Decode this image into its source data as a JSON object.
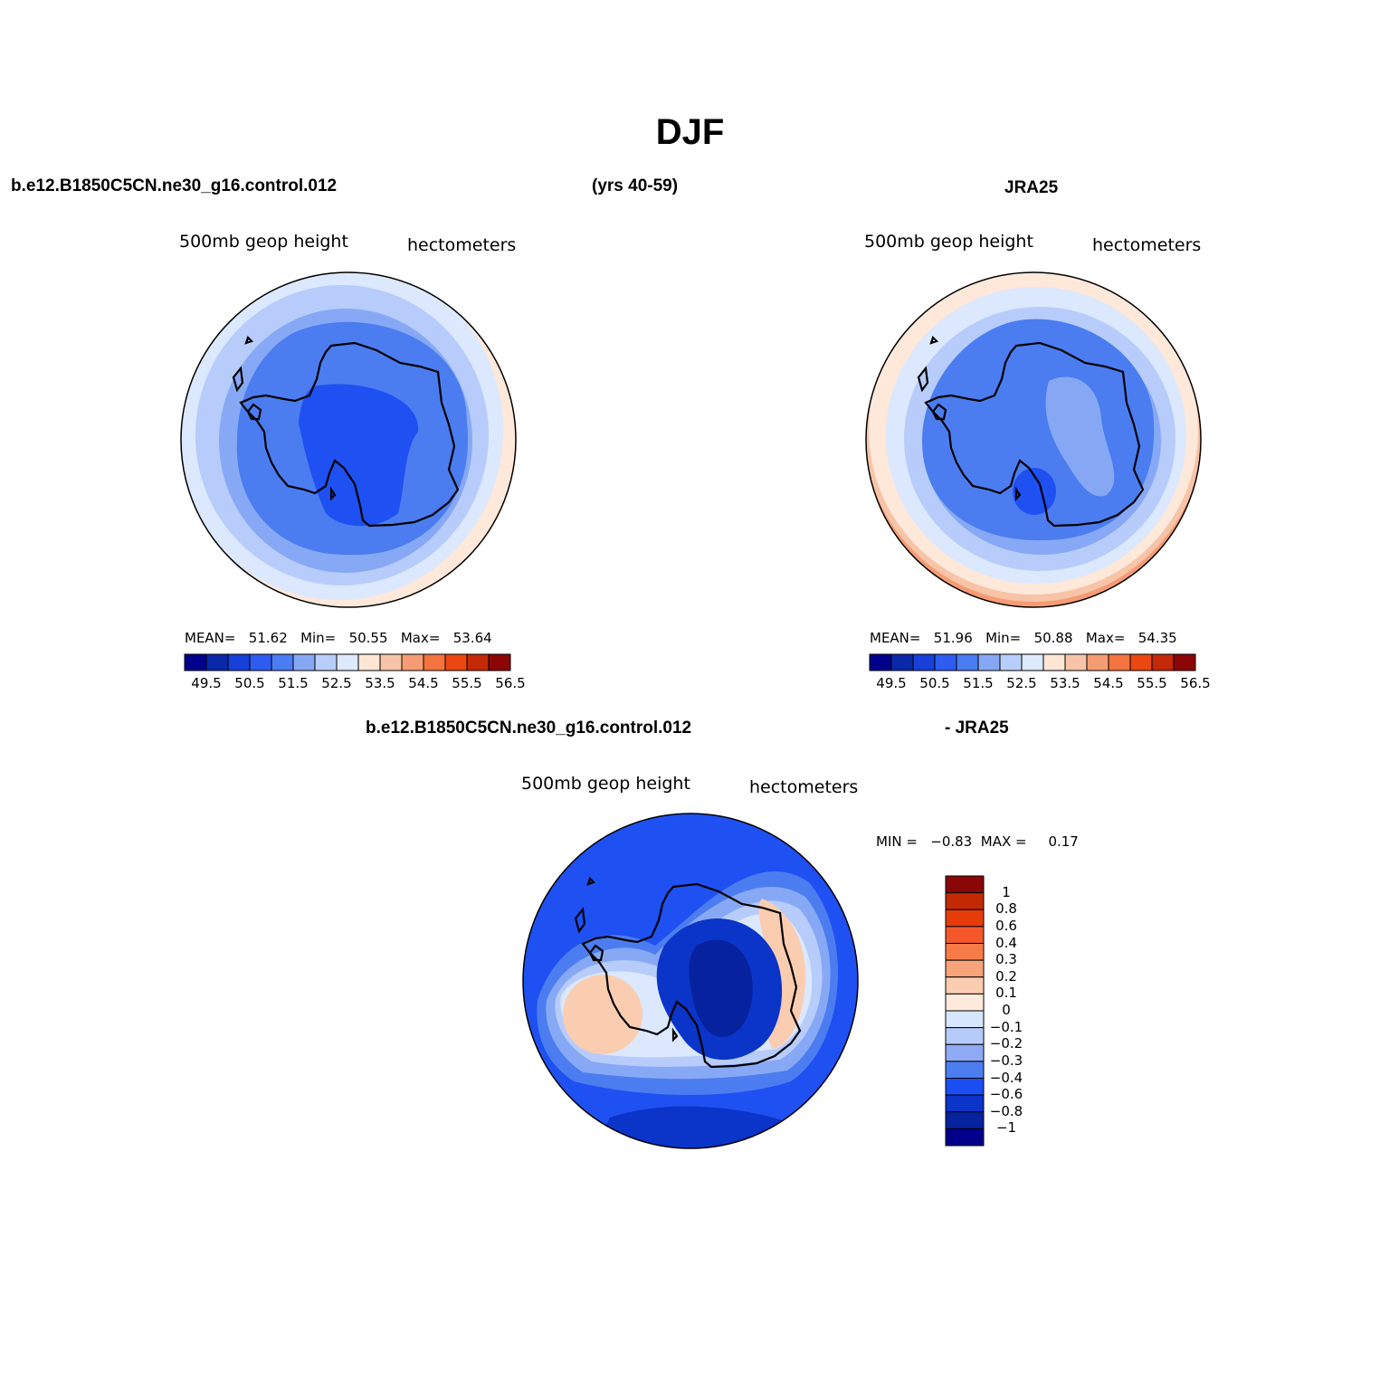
{
  "page_title": "DJF",
  "header": {
    "case_name": "b.e12.B1850C5CN.ne30_g16.control.012",
    "years": "(yrs 40-59)",
    "reference": "JRA25"
  },
  "panels": [
    {
      "variable": "500mb geop height",
      "units": "hectometers",
      "mean_label": "MEAN=",
      "mean": "51.62",
      "min_label": "Min=",
      "min": "50.55",
      "max_label": "Max=",
      "max": "53.64"
    },
    {
      "variable": "500mb geop height",
      "units": "hectometers",
      "mean_label": "MEAN=",
      "mean": "51.96",
      "min_label": "Min=",
      "min": "50.88",
      "max_label": "Max=",
      "max": "54.35"
    }
  ],
  "diff": {
    "header_left": "b.e12.B1850C5CN.ne30_g16.control.012",
    "header_right": "- JRA25",
    "variable": "500mb geop height",
    "units": "hectometers",
    "min_label": "MIN =",
    "min": "−0.83",
    "max_label": "MAX =",
    "max": "0.17"
  },
  "colorbar_main": {
    "tick_labels": [
      "49.5",
      "50.5",
      "51.5",
      "52.5",
      "53.5",
      "54.5",
      "55.5",
      "56.5"
    ],
    "colors": [
      "#00008b",
      "#0a28a8",
      "#1640d8",
      "#2f5cf0",
      "#4a7cf2",
      "#86a8f4",
      "#b8cefa",
      "#dde9fc",
      "#fde6d4",
      "#f7c4a8",
      "#f59c74",
      "#f4733e",
      "#ea4712",
      "#c42908",
      "#8c0606"
    ]
  },
  "colorbar_diff": {
    "tick_labels": [
      "1",
      "0.8",
      "0.6",
      "0.4",
      "0.3",
      "0.2",
      "0.1",
      "0",
      "−0.1",
      "−0.2",
      "−0.3",
      "−0.4",
      "−0.6",
      "−0.8",
      "−1"
    ],
    "colors": [
      "#8b0606",
      "#c22a06",
      "#e63c0a",
      "#f4582a",
      "#f77b48",
      "#f7a47a",
      "#fbcdb0",
      "#fdeadc",
      "#d6e6fc",
      "#b6cbfa",
      "#8faaf5",
      "#4d7ef0",
      "#1b4ef2",
      "#0b34c8",
      "#07229e",
      "#00008b"
    ]
  },
  "map_colors": {
    "field_a": [
      "#fde8da",
      "#dbe8fd",
      "#b7ccfa",
      "#87a9f5",
      "#4b7df0",
      "#1f50f2"
    ],
    "field_b": [
      "#f59c74",
      "#f7c4a8",
      "#fde8da",
      "#dbe8fd",
      "#b7ccfa",
      "#87a9f5",
      "#4b7df0",
      "#86a8f4",
      "#1f50f2"
    ],
    "field_diff": [
      "#1f50f2",
      "#4b7df0",
      "#87a9f5",
      "#b7ccfa",
      "#dbe8fd",
      "#fbcdb0",
      "#0b34c8",
      "#07229e"
    ],
    "coast": "#000000",
    "rim": "#000000"
  }
}
